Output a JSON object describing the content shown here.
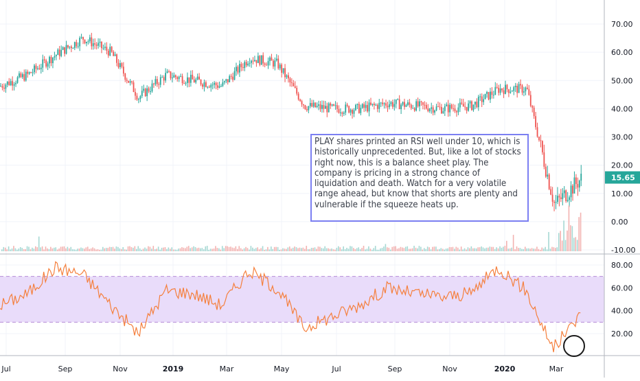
{
  "chart_data": [
    {
      "type": "candlestick",
      "title": "",
      "ylim": [
        -10,
        78
      ],
      "y_ticks": [
        "70.00",
        "60.00",
        "50.00",
        "40.00",
        "30.00",
        "20.00",
        "10.00",
        "0.00",
        "-10.00"
      ],
      "last_price_label": "15.65",
      "colors": {
        "up": "#26a69a",
        "down": "#ef5350",
        "last_price": "#26a69a"
      },
      "series_approx": [
        {
          "t": "Jul 2018",
          "close": 48
        },
        {
          "t": "Aug 2018",
          "close": 52
        },
        {
          "t": "Sep 2018",
          "close": 59
        },
        {
          "t": "Oct 2018",
          "close": 65
        },
        {
          "t": "Nov 2018",
          "close": 60
        },
        {
          "t": "Dec 2018",
          "close": 44
        },
        {
          "t": "Jan 2019",
          "close": 52
        },
        {
          "t": "Feb 2019",
          "close": 50
        },
        {
          "t": "Mar 2019",
          "close": 48
        },
        {
          "t": "Apr 2019",
          "close": 58
        },
        {
          "t": "May 2019",
          "close": 56
        },
        {
          "t": "Jun 2019",
          "close": 41
        },
        {
          "t": "Jul 2019",
          "close": 40
        },
        {
          "t": "Aug 2019",
          "close": 40
        },
        {
          "t": "Sep 2019",
          "close": 42
        },
        {
          "t": "Oct 2019",
          "close": 41
        },
        {
          "t": "Nov 2019",
          "close": 40
        },
        {
          "t": "Dec 2019",
          "close": 41
        },
        {
          "t": "Jan 2020",
          "close": 47
        },
        {
          "t": "Feb 2020",
          "close": 47
        },
        {
          "t": "Mar 2020",
          "close": 6
        },
        {
          "t": "Mar 2020 end",
          "close": 15.65
        }
      ]
    },
    {
      "type": "line",
      "title": "",
      "ylim": [
        0,
        88
      ],
      "y_ticks": [
        "80.00",
        "60.00",
        "40.00",
        "20.00"
      ],
      "bands": [
        30,
        70
      ],
      "colors": {
        "line": "#f57f3c",
        "band_fill": "#e9dcfa",
        "band_line": "#b58bd6"
      },
      "series_approx": [
        {
          "t": "Jul 2018",
          "value": 45
        },
        {
          "t": "Aug 2018",
          "value": 55
        },
        {
          "t": "Sep 2018",
          "value": 78
        },
        {
          "t": "Oct 2018",
          "value": 72
        },
        {
          "t": "Nov 2018",
          "value": 45
        },
        {
          "t": "Dec 2018",
          "value": 20
        },
        {
          "t": "Jan 2019",
          "value": 58
        },
        {
          "t": "Feb 2019",
          "value": 55
        },
        {
          "t": "Mar 2019",
          "value": 45
        },
        {
          "t": "Apr 2019",
          "value": 75
        },
        {
          "t": "May 2019",
          "value": 60
        },
        {
          "t": "Jun 2019",
          "value": 25
        },
        {
          "t": "Jul 2019",
          "value": 35
        },
        {
          "t": "Aug 2019",
          "value": 45
        },
        {
          "t": "Sep 2019",
          "value": 60
        },
        {
          "t": "Oct 2019",
          "value": 55
        },
        {
          "t": "Nov 2019",
          "value": 52
        },
        {
          "t": "Dec 2019",
          "value": 55
        },
        {
          "t": "Jan 2020",
          "value": 78
        },
        {
          "t": "Feb 2020",
          "value": 58
        },
        {
          "t": "Mar 2020",
          "value": 7
        },
        {
          "t": "Mar 2020 end",
          "value": 37
        }
      ]
    }
  ],
  "x_axis_labels": [
    "Jul",
    "Sep",
    "Nov",
    "2019",
    "Mar",
    "May",
    "Jul",
    "Sep",
    "Nov",
    "2020",
    "Mar"
  ],
  "annotation": {
    "text": "PLAY shares printed an RSI well under 10, which is historically unprecedented. But, like a lot of stocks right now, this is a balance sheet play. The company is pricing in a strong chance of liquidation and death. Watch for a very volatile range ahead, but know that shorts are plenty and vulnerable if the squeeze heats up.",
    "border_color": "#7b7ff2"
  },
  "highlight_circle_color": "#1b1b1b"
}
